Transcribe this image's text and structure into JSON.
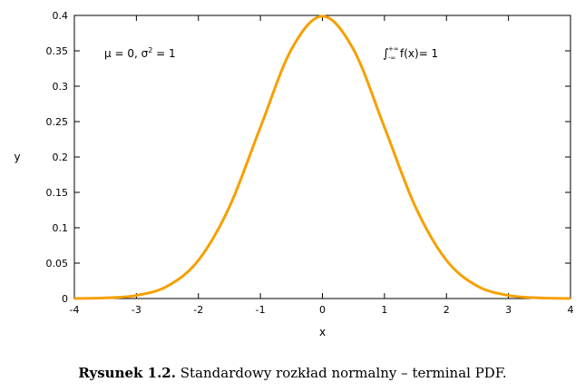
{
  "chart_data": {
    "type": "line",
    "xlabel": "x",
    "ylabel": "y",
    "xlim": [
      -4,
      4
    ],
    "ylim": [
      0,
      0.4
    ],
    "xticks": [
      "-4",
      "-3",
      "-2",
      "-1",
      "0",
      "1",
      "2",
      "3",
      "4"
    ],
    "yticks": [
      "0",
      "0.05",
      "0.1",
      "0.15",
      "0.2",
      "0.25",
      "0.3",
      "0.35",
      "0.4"
    ],
    "grid": false,
    "series": [
      {
        "color": "#f5a000",
        "x": [
          -4,
          -3.5,
          -3,
          -2.5,
          -2,
          -1.5,
          -1,
          -0.5,
          0,
          0.5,
          1,
          1.5,
          2,
          2.5,
          3,
          3.5,
          4
        ],
        "y": [
          0.0001,
          0.0009,
          0.0044,
          0.0175,
          0.054,
          0.1295,
          0.242,
          0.3521,
          0.3989,
          0.3521,
          0.242,
          0.1295,
          0.054,
          0.0175,
          0.0044,
          0.0009,
          0.0001
        ]
      }
    ],
    "annotations": {
      "params_mu": "μ = 0, σ",
      "params_sup": "2",
      "params_rest": " = 1",
      "integral": "∫",
      "integral_upper": "+∞",
      "integral_lower": "-∞",
      "integral_rest": " f(x)= 1"
    }
  },
  "caption": {
    "lead": "Rysunek 1.2.",
    "text": " Standardowy rozkład normalny – terminal PDF."
  }
}
